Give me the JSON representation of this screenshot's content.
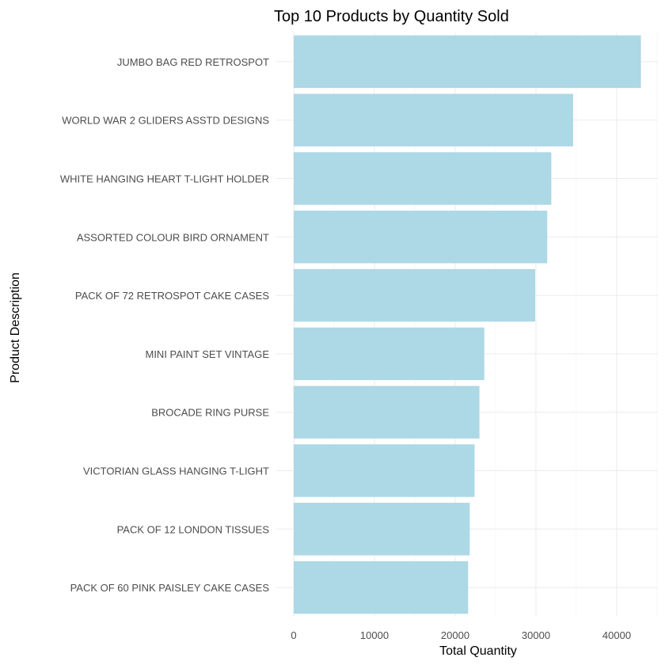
{
  "chart_data": {
    "type": "bar",
    "orientation": "horizontal",
    "title": "Top 10 Products by Quantity Sold",
    "xlabel": "Total Quantity",
    "ylabel": "Product Description",
    "categories": [
      "JUMBO BAG RED RETROSPOT",
      "WORLD WAR 2 GLIDERS ASSTD DESIGNS",
      "WHITE HANGING HEART T-LIGHT HOLDER",
      "ASSORTED COLOUR BIRD ORNAMENT",
      "PACK OF 72 RETROSPOT CAKE CASES",
      "MINI PAINT SET VINTAGE",
      "BROCADE RING PURSE",
      "VICTORIAN GLASS HANGING T-LIGHT",
      "PACK OF 12 LONDON TISSUES",
      "PACK OF 60 PINK PAISLEY CAKE CASES"
    ],
    "values": [
      43000,
      34600,
      31900,
      31400,
      29900,
      23600,
      23000,
      22400,
      21800,
      21600
    ],
    "xlim": [
      0,
      45000
    ],
    "xticks": [
      0,
      10000,
      20000,
      30000,
      40000
    ],
    "xtick_labels": [
      "0",
      "10000",
      "20000",
      "30000",
      "40000"
    ],
    "bar_color": "#add8e6",
    "grid": true,
    "legend": false
  }
}
